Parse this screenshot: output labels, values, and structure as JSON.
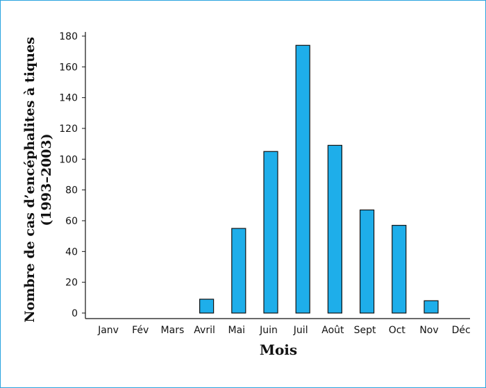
{
  "chart_data": {
    "type": "bar",
    "xlabel": "Mois",
    "ylabel": "Nombre de cas d’encéphalites à tiques",
    "ylabel_line2": "(1993–2003)",
    "categories": [
      "Janv",
      "Fév",
      "Mars",
      "Avril",
      "Mai",
      "Juin",
      "Juil",
      "Août",
      "Sept",
      "Oct",
      "Nov",
      "Déc"
    ],
    "values": [
      0,
      0,
      0,
      9,
      55,
      105,
      174,
      109,
      67,
      57,
      8,
      0
    ],
    "ylim": [
      0,
      180
    ],
    "yticks": [
      0,
      20,
      40,
      60,
      80,
      100,
      120,
      140,
      160,
      180
    ],
    "bar_color": "#1eaeea",
    "grid": false
  }
}
